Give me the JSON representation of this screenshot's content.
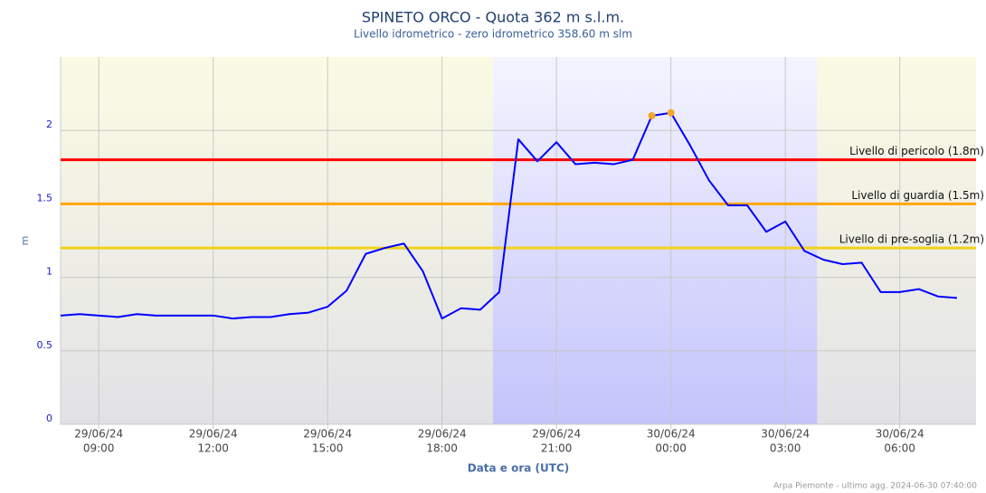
{
  "chart_data": {
    "type": "line",
    "title": "SPINETO ORCO - Quota 362 m s.l.m.",
    "subtitle": "Livello idrometrico - zero idrometrico 358.60 m slm",
    "y_label": "m",
    "x_label": "Data e ora (UTC)",
    "footer": "Arpa Piemonte - ultimo agg. 2024-06-30 07:40:00",
    "xlim": [
      "2024-06-29 08:00",
      "2024-06-30 08:00"
    ],
    "ylim": [
      0,
      2.5
    ],
    "yticks": [
      0,
      0.5,
      1,
      1.5,
      2
    ],
    "xticks": [
      {
        "value": "2024-06-29 09:00",
        "label": [
          "29/06/24",
          "09:00"
        ]
      },
      {
        "value": "2024-06-29 12:00",
        "label": [
          "29/06/24",
          "12:00"
        ]
      },
      {
        "value": "2024-06-29 15:00",
        "label": [
          "29/06/24",
          "15:00"
        ]
      },
      {
        "value": "2024-06-29 18:00",
        "label": [
          "29/06/24",
          "18:00"
        ]
      },
      {
        "value": "2024-06-29 21:00",
        "label": [
          "29/06/24",
          "21:00"
        ]
      },
      {
        "value": "2024-06-30 00:00",
        "label": [
          "30/06/24",
          "00:00"
        ]
      },
      {
        "value": "2024-06-30 03:00",
        "label": [
          "30/06/24",
          "03:00"
        ]
      },
      {
        "value": "2024-06-30 06:00",
        "label": [
          "30/06/24",
          "06:00"
        ]
      }
    ],
    "grid": true,
    "night": {
      "from": "2024-06-29 19:20",
      "to": "2024-06-30 03:50"
    },
    "x": [
      "2024-06-29 08:00",
      "2024-06-29 08:30",
      "2024-06-29 09:00",
      "2024-06-29 09:30",
      "2024-06-29 10:00",
      "2024-06-29 10:30",
      "2024-06-29 11:00",
      "2024-06-29 11:30",
      "2024-06-29 12:00",
      "2024-06-29 12:30",
      "2024-06-29 13:00",
      "2024-06-29 13:30",
      "2024-06-29 14:00",
      "2024-06-29 14:30",
      "2024-06-29 15:00",
      "2024-06-29 15:30",
      "2024-06-29 16:00",
      "2024-06-29 16:30",
      "2024-06-29 17:00",
      "2024-06-29 17:30",
      "2024-06-29 18:00",
      "2024-06-29 18:30",
      "2024-06-29 19:00",
      "2024-06-29 19:30",
      "2024-06-29 20:00",
      "2024-06-29 20:30",
      "2024-06-29 21:00",
      "2024-06-29 21:30",
      "2024-06-29 22:00",
      "2024-06-29 22:30",
      "2024-06-29 23:00",
      "2024-06-29 23:30",
      "2024-06-30 00:00",
      "2024-06-30 00:30",
      "2024-06-30 01:00",
      "2024-06-30 01:30",
      "2024-06-30 02:00",
      "2024-06-30 02:30",
      "2024-06-30 03:00",
      "2024-06-30 03:30",
      "2024-06-30 04:00",
      "2024-06-30 04:30",
      "2024-06-30 05:00",
      "2024-06-30 05:30",
      "2024-06-30 06:00",
      "2024-06-30 06:30",
      "2024-06-30 07:00",
      "2024-06-30 07:30"
    ],
    "series": [
      {
        "color": "#0000ff",
        "values": [
          0.74,
          0.75,
          0.74,
          0.73,
          0.75,
          0.74,
          0.74,
          0.74,
          0.74,
          0.72,
          0.73,
          0.73,
          0.75,
          0.76,
          0.8,
          0.91,
          1.16,
          1.2,
          1.23,
          1.04,
          0.72,
          0.79,
          0.78,
          0.9,
          1.94,
          1.79,
          1.92,
          1.77,
          1.78,
          1.77,
          1.8,
          2.1,
          2.12,
          1.9,
          1.66,
          1.49,
          1.49,
          1.31,
          1.38,
          1.18,
          1.12,
          1.09,
          1.1,
          0.9,
          0.9,
          0.92,
          0.87,
          0.86
        ],
        "marked_points": [
          31,
          32
        ],
        "marker_color": "#f5a623"
      }
    ],
    "thresholds": [
      {
        "value": 1.8,
        "label": "Livello di pericolo (1.8m)",
        "color": "#ff0000"
      },
      {
        "value": 1.5,
        "label": "Livello di guardia (1.5m)",
        "color": "#ffa500"
      },
      {
        "value": 1.2,
        "label": "Livello di pre-soglia (1.2m)",
        "color": "#f2d21b"
      }
    ]
  }
}
